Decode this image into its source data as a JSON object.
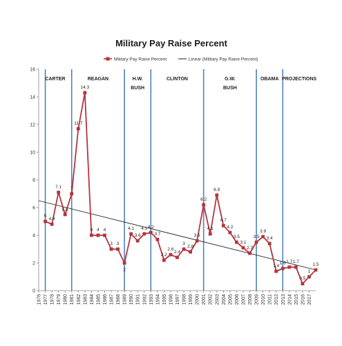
{
  "chart_data": {
    "type": "line",
    "title": "Military Pay Raise Percent",
    "series": [
      {
        "name": "Military Pay Raise Percent",
        "color": "#b5343b",
        "marker": "square",
        "x": [
          1977,
          1978,
          1979,
          1980,
          1981,
          1982,
          1983,
          1984,
          1985,
          1986,
          1987,
          1988,
          1989,
          1990,
          1991,
          1992,
          1993,
          1994,
          1995,
          1996,
          1997,
          1998,
          1999,
          2000,
          2001,
          2002,
          2003,
          2004,
          2005,
          2006,
          2007,
          2008,
          2009,
          2010,
          2011,
          2012,
          2013,
          2014,
          2015,
          2016,
          2017,
          2018
        ],
        "values": [
          5,
          4.8,
          7.1,
          5.5,
          7,
          11.7,
          14.3,
          4,
          4,
          4,
          3,
          3,
          2,
          4.1,
          3.6,
          4.1,
          4.2,
          3.7,
          2.2,
          2.6,
          2.4,
          3,
          2.8,
          3.6,
          6.2,
          4.1,
          6.9,
          4.7,
          4.2,
          3.5,
          3.1,
          2.7,
          3.5,
          3.9,
          3.4,
          1.4,
          1.6,
          1.7,
          1.7,
          0.5,
          1,
          1.5
        ],
        "labels": [
          "5",
          "4.8",
          "7.1",
          "5.5",
          "7",
          "11.7",
          "14.3",
          "4",
          "4",
          "4",
          "3",
          "3",
          "2",
          "4.1",
          "3.6",
          "4.1",
          "4.2",
          "3.7",
          "2.2",
          "2.6",
          "2.4",
          "3",
          "2.8",
          "3.6",
          "6.2",
          "4.1",
          "6.9",
          "4.7",
          "4.2",
          "3.5",
          "3.1",
          "2.7",
          "3.5",
          "3.9",
          "3.4",
          "1.4",
          "1.6",
          "1.7",
          "1.7",
          "0.5",
          "1",
          "1.5"
        ]
      },
      {
        "name": "Linear (Military Pay Raise Percent)",
        "color": "#222222",
        "trend_start": [
          1976,
          6.5
        ],
        "trend_end": [
          2018,
          1.5
        ]
      }
    ],
    "x_tick_labels": [
      "1976",
      "1977",
      "1978",
      "1979",
      "1980",
      "1981",
      "1982",
      "1983",
      "1984",
      "1985",
      "1986",
      "1987",
      "1988",
      "1989",
      "1990",
      "1991",
      "1992",
      "1993",
      "1994",
      "1995",
      "1996",
      "1997",
      "1998",
      "1999",
      "2000",
      "2001",
      "2002",
      "2003",
      "2004",
      "2005",
      "2006",
      "2007",
      "2008",
      "2009",
      "2010",
      "2011",
      "2012",
      "2013",
      "2014",
      "2015",
      "2016",
      "2017"
    ],
    "y_ticks": [
      "0",
      "2",
      "4",
      "6",
      "8",
      "10",
      "12",
      "14",
      "16"
    ],
    "ylim": [
      0,
      16
    ],
    "xlim": [
      1976,
      2018
    ],
    "era_boundaries": [
      1977,
      1981,
      1989,
      1993,
      2001,
      2009,
      2013
    ],
    "era_line_color": "#4f81bd",
    "eras": [
      {
        "label": "CARTER",
        "year": 1978.5
      },
      {
        "label": "REAGAN",
        "year": 1985
      },
      {
        "label": "H.W. BUSH",
        "year": 1991
      },
      {
        "label": "CLINTON",
        "year": 1997
      },
      {
        "label": "G.W. BUSH",
        "year": 2005
      },
      {
        "label": "OBAMA",
        "year": 2011
      },
      {
        "label": "PROJECTIONS",
        "year": 2015.5
      }
    ],
    "legend_position": "top",
    "grid": false
  }
}
